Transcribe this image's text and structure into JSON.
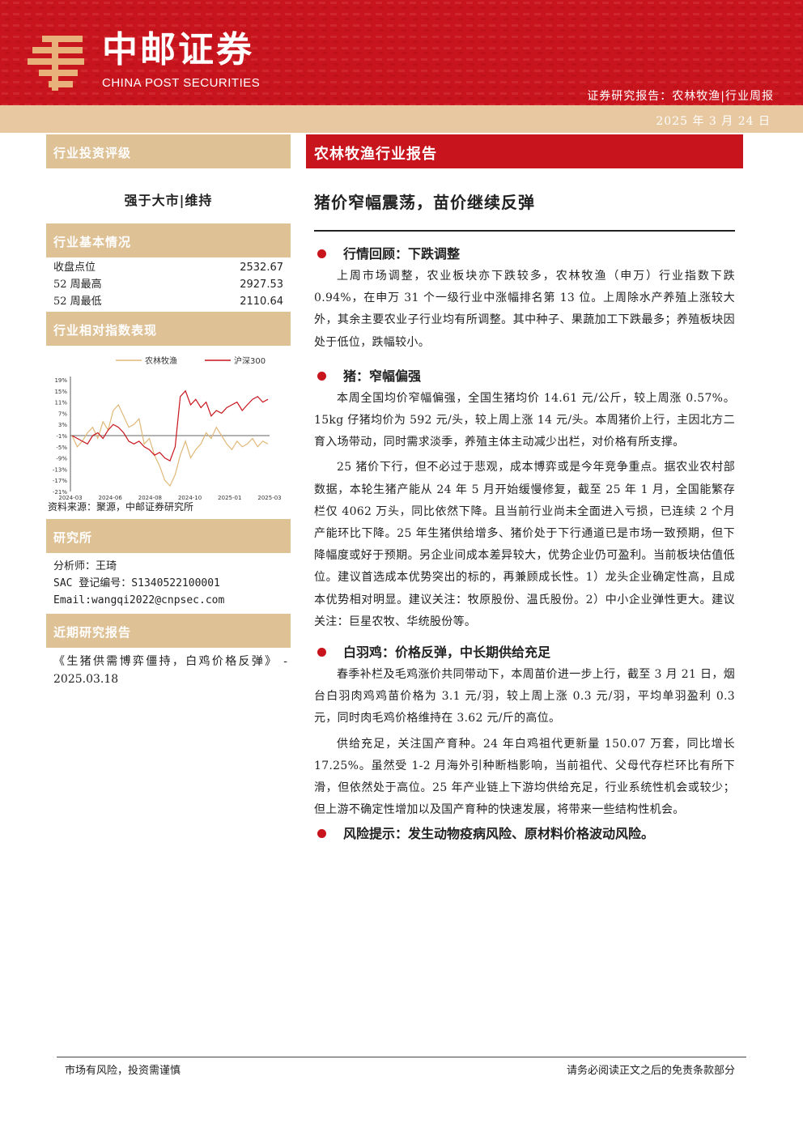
{
  "header": {
    "brand_cn": "中邮证券",
    "brand_en": "CHINA POST SECURITIES",
    "doc_type": "证券研究报告：农林牧渔|行业周报",
    "date": "2025 年 3 月 24 日"
  },
  "left": {
    "rating_head": "行业投资评级",
    "rating": "强于大市|维持",
    "basic_head": "行业基本情况",
    "stats": [
      {
        "label": "收盘点位",
        "value": "2532.67"
      },
      {
        "label": "52 周最高",
        "value": "2927.53"
      },
      {
        "label": "52 周最低",
        "value": "2110.64"
      }
    ],
    "perf_head": "行业相对指数表现",
    "chart_source": "资料来源：聚源，中邮证券研究所",
    "research_head": "研究所",
    "analyst": "分析师：王琦",
    "sac": "SAC 登记编号：S1340522100001",
    "email": "Email:wangqi2022@cnpsec.com",
    "recent_head": "近期研究报告",
    "recent_report": "《生猪供需博弈僵持，白鸡价格反弹》 - 2025.03.18"
  },
  "chart_data": {
    "type": "line",
    "title": "",
    "legend": [
      "农林牧渔",
      "沪深300"
    ],
    "legend_placement": "top",
    "colors": {
      "农林牧渔": "#e0b878",
      "沪深300": "#c8141c"
    },
    "y_ticks": [
      "19%",
      "15%",
      "11%",
      "7%",
      "3%",
      "-1%",
      "-5%",
      "-9%",
      "-13%",
      "-17%",
      "-21%"
    ],
    "x_ticks": [
      "2024-03",
      "2024-06",
      "2024-08",
      "2024-10",
      "2025-01",
      "2025-03"
    ],
    "ylim": [
      -21,
      19
    ],
    "series": [
      {
        "name": "农林牧渔",
        "values": [
          -1,
          -5,
          -3,
          0,
          2,
          -2,
          4,
          1,
          8,
          10,
          6,
          2,
          3,
          5,
          -4,
          -2,
          -8,
          -12,
          -17,
          -19,
          -15,
          -8,
          -3,
          -9,
          -6,
          -4,
          0,
          -2,
          2,
          -1,
          -4,
          -6,
          -3,
          -5,
          -4,
          -2,
          -5,
          -3,
          -4
        ]
      },
      {
        "name": "沪深300",
        "values": [
          -1,
          -2,
          -3,
          -4,
          -1,
          0,
          -2,
          1,
          3,
          2,
          0,
          -3,
          -4,
          -3,
          -5,
          -6,
          -8,
          -7,
          -9,
          -10,
          -5,
          13,
          15,
          10,
          12,
          9,
          11,
          6,
          8,
          7,
          9,
          10,
          11,
          8,
          10,
          12,
          13,
          11,
          12
        ]
      }
    ]
  },
  "right": {
    "industry_title": "农林牧渔行业报告",
    "main_title": "猪价窄幅震荡，苗价继续反弹",
    "sections": [
      {
        "heading": "行情回顾：下跌调整",
        "paras": [
          "上周市场调整，农业板块亦下跌较多，农林牧渔（申万）行业指数下跌 0.94%，在申万 31 个一级行业中涨幅排名第 13 位。上周除水产养殖上涨较大外，其余主要农业子行业均有所调整。其中种子、果蔬加工下跌最多；养殖板块因处于低位，跌幅较小。"
        ]
      },
      {
        "heading": "猪：窄幅偏强",
        "paras": [
          "本周全国均价窄幅偏强，全国生猪均价 14.61 元/公斤，较上周涨 0.57%。15kg 仔猪均价为 592 元/头，较上周上涨 14 元/头。本周猪价上行，主因北方二育入场带动，同时需求淡季，养殖主体主动减少出栏，对价格有所支撑。",
          "25 猪价下行，但不必过于悲观，成本博弈或是今年竞争重点。据农业农村部数据，本轮生猪产能从 24 年 5 月开始缓慢修复，截至 25 年 1 月，全国能繁存栏仅 4062 万头，同比依然下降。且当前行业尚未全面进入亏损，已连续 2 个月产能环比下降。25 年生猪供给增多、猪价处于下行通道已是市场一致预期，但下降幅度或好于预期。另企业间成本差异较大，优势企业仍可盈利。当前板块估值低位。建议首选成本优势突出的标的，再兼顾成长性。1）龙头企业确定性高，且成本优势相对明显。建议关注：牧原股份、温氏股份。2）中小企业弹性更大。建议关注：巨星农牧、华统股份等。"
        ]
      },
      {
        "heading": "白羽鸡：价格反弹，中长期供给充足",
        "paras": [
          "春季补栏及毛鸡涨价共同带动下，本周苗价进一步上行，截至 3 月 21 日，烟台白羽肉鸡鸡苗价格为 3.1 元/羽，较上周上涨 0.3 元/羽，平均单羽盈利 0.3 元，同时肉毛鸡价格维持在 3.62 元/斤的高位。",
          "供给充足，关注国产育种。24 年白鸡祖代更新量 150.07 万套，同比增长 17.25%。虽然受 1-2 月海外引种断档影响，当前祖代、父母代存栏环比有所下滑，但依然处于高位。25 年产业链上下游均供给充足，行业系统性机会或较少；但上游不确定性增加以及国产育种的快速发展，将带来一些结构性机会。"
        ]
      }
    ],
    "risk": "风险提示：发生动物疫病风险、原材料价格波动风险。"
  },
  "footer": {
    "left": "市场有风险，投资需谨慎",
    "right": "请务必阅读正文之后的免责条款部分"
  }
}
